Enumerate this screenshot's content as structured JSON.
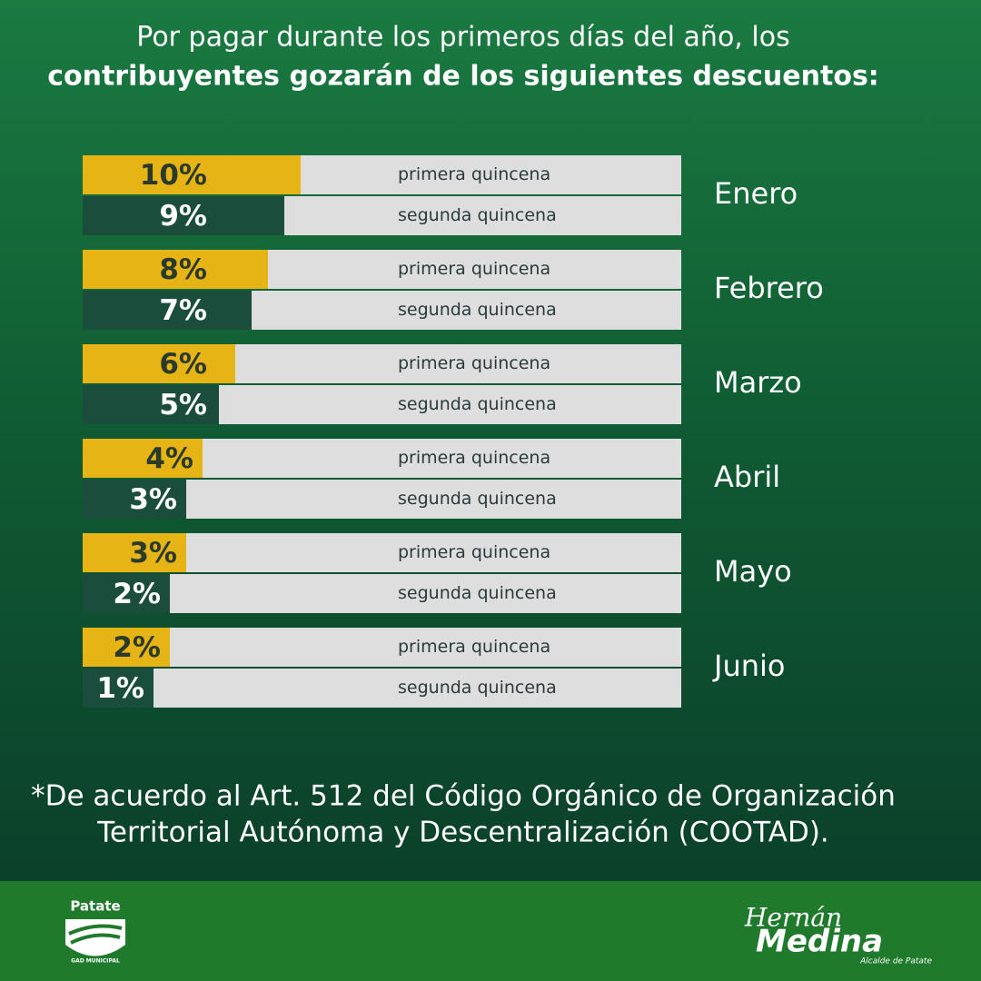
{
  "chart_data": {
    "type": "bar",
    "title": "Por pagar durante los primeros días del año, los",
    "subtitle": "contribuyentes gozarán de los siguientes descuentos:",
    "categories": [
      "Enero",
      "Febrero",
      "Marzo",
      "Abril",
      "Mayo",
      "Junio"
    ],
    "series": [
      {
        "name": "primera quincena",
        "color": "#e7b416",
        "values": [
          10,
          8,
          6,
          4,
          3,
          2
        ],
        "value_labels": [
          "10%",
          "8%",
          "6%",
          "4%",
          "3%",
          "2%"
        ]
      },
      {
        "name": "segunda quincena",
        "color": "#1b4d3c",
        "values": [
          9,
          7,
          5,
          3,
          2,
          1
        ],
        "value_labels": [
          "9%",
          "7%",
          "5%",
          "3%",
          "2%",
          "1%"
        ]
      }
    ],
    "footnote": [
      "*De acuerdo al Art. 512 del Código Orgánico de Organización",
      "Territorial  Autónoma y Descentralización (COOTAD)."
    ],
    "logo_left": {
      "name": "Patate",
      "caption": "GAD MUNICIPAL"
    },
    "logo_right": {
      "first": "Hernán",
      "last": "Medina",
      "caption": "Alcalde de Patate"
    }
  }
}
